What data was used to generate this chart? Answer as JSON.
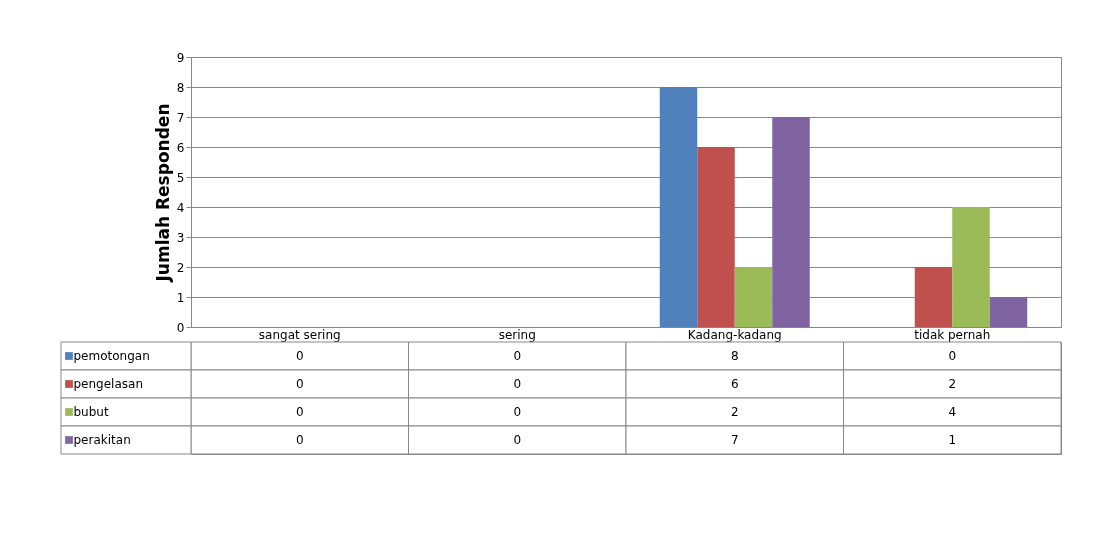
{
  "chart_data": {
    "type": "bar",
    "ylabel": "Jumlah Responden",
    "categories": [
      "sangat sering",
      "sering",
      "Kadang-kadang",
      "tidak pernah"
    ],
    "series": [
      {
        "name": "pemotongan",
        "color": "#4f81bd",
        "values": [
          0,
          0,
          8,
          0
        ]
      },
      {
        "name": "pengelasan",
        "color": "#c0504d",
        "values": [
          0,
          0,
          6,
          2
        ]
      },
      {
        "name": "bubut",
        "color": "#9bbb59",
        "values": [
          0,
          0,
          2,
          4
        ]
      },
      {
        "name": "perakitan",
        "color": "#8064a2",
        "values": [
          0,
          0,
          7,
          1
        ]
      }
    ],
    "ylim": [
      0,
      9
    ],
    "yticks": [
      0,
      1,
      2,
      3,
      4,
      5,
      6,
      7,
      8,
      9
    ],
    "grid": "y",
    "legend": "bottom left",
    "data_labels": true
  }
}
